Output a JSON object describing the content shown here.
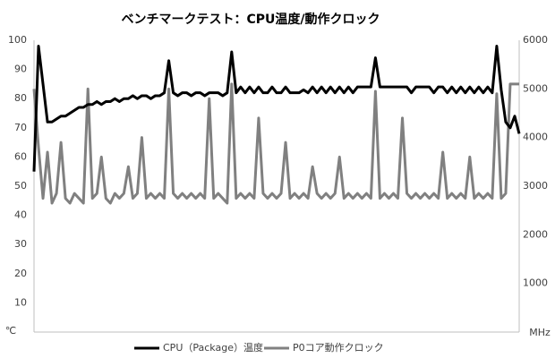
{
  "chart_data": {
    "type": "line",
    "title": "ベンチマークテスト：CPU温度/動作クロック",
    "y_label": "℃",
    "y2_label": "MHz",
    "ylim": [
      0,
      100
    ],
    "yticks": [
      10,
      20,
      30,
      40,
      50,
      60,
      70,
      80,
      90,
      100
    ],
    "y2lim": [
      0,
      6000
    ],
    "y2ticks": [
      1000,
      2000,
      3000,
      4000,
      5000,
      6000
    ],
    "legend": "bottom",
    "series": [
      {
        "name": "CPU（Package）温度",
        "color": "#000000",
        "axis": "y",
        "values": [
          55,
          98,
          85,
          72,
          72,
          73,
          74,
          74,
          75,
          76,
          77,
          77,
          78,
          78,
          79,
          78,
          79,
          79,
          80,
          79,
          80,
          80,
          81,
          80,
          81,
          81,
          80,
          81,
          81,
          82,
          93,
          82,
          81,
          82,
          82,
          81,
          82,
          82,
          81,
          82,
          82,
          82,
          81,
          82,
          96,
          82,
          84,
          82,
          84,
          82,
          84,
          82,
          82,
          84,
          82,
          82,
          84,
          82,
          82,
          82,
          83,
          82,
          84,
          82,
          84,
          82,
          84,
          82,
          84,
          82,
          84,
          82,
          84,
          84,
          84,
          84,
          94,
          84,
          84,
          84,
          84,
          84,
          84,
          84,
          82,
          84,
          84,
          84,
          84,
          82,
          84,
          84,
          82,
          84,
          82,
          84,
          82,
          84,
          82,
          84,
          82,
          84,
          82,
          98,
          83,
          72,
          70,
          74,
          68
        ]
      },
      {
        "name": "P0コア動作クロック",
        "color": "#808080",
        "axis": "y2",
        "values": [
          5000,
          3800,
          2750,
          3700,
          2650,
          2850,
          3900,
          2750,
          2650,
          2850,
          2750,
          2650,
          5000,
          2750,
          2850,
          3600,
          2750,
          2650,
          2850,
          2750,
          2850,
          3400,
          2750,
          2850,
          4000,
          2750,
          2850,
          2750,
          2850,
          2750,
          5000,
          2850,
          2750,
          2850,
          2750,
          2850,
          2750,
          2850,
          2750,
          4800,
          2750,
          2850,
          2750,
          2650,
          5100,
          2750,
          2850,
          2750,
          2850,
          2750,
          4400,
          2850,
          2750,
          2850,
          2750,
          2850,
          3900,
          2750,
          2850,
          2750,
          2850,
          2750,
          3400,
          2850,
          2750,
          2850,
          2750,
          2850,
          3600,
          2750,
          2850,
          2750,
          2850,
          2750,
          2850,
          2750,
          4950,
          2750,
          2850,
          2750,
          2850,
          2750,
          4400,
          2850,
          2750,
          2850,
          2750,
          2850,
          2750,
          2850,
          2750,
          3700,
          2750,
          2850,
          2750,
          2850,
          2750,
          3600,
          2750,
          2850,
          2750,
          2850,
          2750,
          4900,
          2750,
          2850,
          5100,
          5100,
          5100
        ]
      }
    ]
  }
}
